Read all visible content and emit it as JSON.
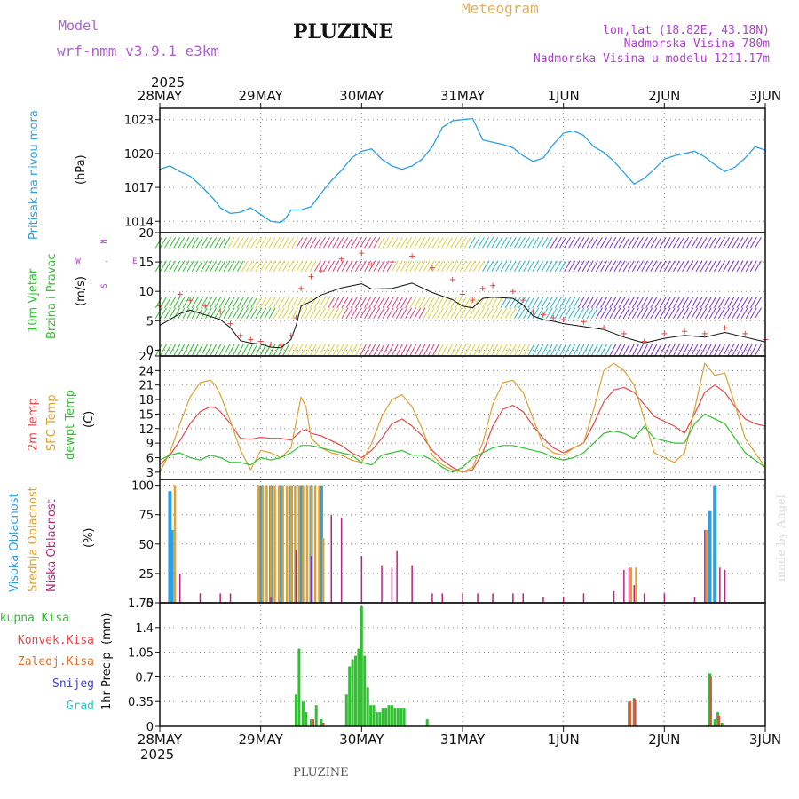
{
  "header": {
    "model_label": "Model",
    "model_name": "wrf-nmm_v3.9.1  e3km",
    "station": "PLUZINE",
    "chart_kind": "Meteogram",
    "lonlat": "lon,lat (18.82E, 43.18N)",
    "elevation": "Nadmorska Visina 780m",
    "model_elevation": "Nadmorska Visina u modelu 1211.17m",
    "year": "2025",
    "footer_station": "PLUZINE",
    "credit": "made by Angel"
  },
  "chart_data": [
    {
      "type": "line",
      "id": "pressure",
      "ylabel": "Pritisak na nivou mora",
      "unit": "(hPa)",
      "ylim": [
        1013,
        1024
      ],
      "yticks": [
        "1014",
        "1017",
        "1020",
        "1023"
      ],
      "x_days": [
        0,
        0.1,
        0.2,
        0.3,
        0.4,
        0.5,
        0.55,
        0.6,
        0.7,
        0.8,
        0.9,
        1.0,
        1.05,
        1.1,
        1.2,
        1.25,
        1.3,
        1.4,
        1.5,
        1.6,
        1.7,
        1.8,
        1.9,
        2.0,
        2.1,
        2.2,
        2.3,
        2.4,
        2.5,
        2.6,
        2.7,
        2.8,
        2.9,
        3.0,
        3.1,
        3.2,
        3.3,
        3.4,
        3.5,
        3.6,
        3.7,
        3.8,
        3.9,
        4.0,
        4.1,
        4.2,
        4.3,
        4.4,
        4.5,
        4.6,
        4.7,
        4.8,
        4.9,
        5.0,
        5.1,
        5.2,
        5.3,
        5.4,
        5.5,
        5.6,
        5.7,
        5.8,
        5.9,
        6.0
      ],
      "values": [
        1018.6,
        1018.9,
        1018.4,
        1018.0,
        1017.2,
        1016.3,
        1015.8,
        1015.2,
        1014.7,
        1014.8,
        1015.2,
        1014.6,
        1014.3,
        1014.0,
        1013.9,
        1014.3,
        1015.0,
        1015.0,
        1015.3,
        1016.5,
        1017.6,
        1018.5,
        1019.6,
        1020.2,
        1020.4,
        1019.5,
        1018.9,
        1018.6,
        1018.9,
        1019.5,
        1020.6,
        1022.3,
        1022.9,
        1023.0,
        1023.1,
        1021.2,
        1021.0,
        1020.8,
        1020.5,
        1019.8,
        1019.3,
        1019.6,
        1020.8,
        1021.8,
        1022.0,
        1021.6,
        1020.6,
        1020.1,
        1019.3,
        1018.3,
        1017.3,
        1017.8,
        1018.6,
        1019.5,
        1019.8,
        1020.0,
        1020.2,
        1019.7,
        1019.0,
        1018.4,
        1018.8,
        1019.6,
        1020.6,
        1020.3
      ]
    },
    {
      "type": "line",
      "id": "wind",
      "ylabel": "10m Vjetar",
      "ylabel2": "Brzina i Pravac",
      "unit": "(m/s)",
      "ylim": [
        -1,
        20
      ],
      "yticks": [
        "0",
        "5",
        "10",
        "15",
        "20"
      ],
      "compass": [
        "N",
        "W",
        "-",
        "E",
        "S"
      ],
      "x_days": [
        0,
        0.2,
        0.3,
        0.45,
        0.6,
        0.7,
        0.8,
        0.9,
        1.0,
        1.1,
        1.2,
        1.3,
        1.35,
        1.4,
        1.5,
        1.6,
        1.8,
        2.0,
        2.1,
        2.3,
        2.5,
        2.7,
        2.9,
        3.0,
        3.1,
        3.2,
        3.3,
        3.5,
        3.6,
        3.7,
        3.8,
        3.9,
        4.0,
        4.2,
        4.4,
        4.6,
        4.8,
        5.0,
        5.2,
        5.4,
        5.6,
        5.8,
        6.0
      ],
      "values": [
        4.2,
        6.2,
        6.8,
        6.0,
        5.2,
        3.8,
        1.6,
        1.2,
        1.0,
        0.5,
        0.4,
        1.8,
        4.2,
        7.5,
        8.3,
        9.4,
        10.6,
        11.3,
        10.4,
        10.5,
        11.4,
        9.8,
        8.6,
        7.5,
        7.2,
        8.8,
        9.0,
        8.8,
        7.7,
        5.8,
        5.2,
        4.9,
        4.5,
        4.0,
        3.5,
        2.2,
        1.2,
        2.0,
        2.5,
        2.2,
        3.0,
        2.2,
        1.4
      ],
      "gust_values": [
        7.5,
        9.5,
        8.5,
        7.5,
        6.5,
        4.5,
        2.5,
        1.8,
        1.5,
        1.0,
        0.8,
        2.5,
        5.5,
        10.5,
        12.5,
        13.5,
        15.5,
        16.5,
        14.5,
        15.0,
        16.0,
        14.0,
        12.0,
        9.5,
        8.5,
        10.5,
        11.0,
        10.0,
        8.5,
        6.5,
        6.0,
        5.5,
        5.2,
        4.8,
        3.8,
        2.8,
        1.5,
        2.8,
        3.2,
        2.8,
        3.8,
        2.8,
        1.8
      ]
    },
    {
      "type": "line",
      "id": "temperature",
      "ylabel": "2m Temp",
      "ylabel2": "SFC Temp",
      "ylabel3": "dewpt Temp",
      "unit": "(C)",
      "ylim": [
        1.5,
        27
      ],
      "yticks": [
        "3",
        "6",
        "9",
        "12",
        "15",
        "18",
        "21",
        "24",
        "27"
      ],
      "series": [
        {
          "name": "2m Temp",
          "color": "#e84848",
          "x_days": [
            0,
            0.1,
            0.2,
            0.3,
            0.4,
            0.5,
            0.55,
            0.6,
            0.7,
            0.8,
            0.9,
            1.0,
            1.1,
            1.2,
            1.3,
            1.4,
            1.45,
            1.5,
            1.6,
            1.7,
            1.8,
            1.9,
            2.0,
            2.1,
            2.2,
            2.3,
            2.4,
            2.5,
            2.6,
            2.7,
            2.8,
            2.9,
            3.0,
            3.1,
            3.2,
            3.3,
            3.4,
            3.5,
            3.6,
            3.7,
            3.8,
            3.9,
            4.0,
            4.1,
            4.2,
            4.3,
            4.4,
            4.5,
            4.6,
            4.7,
            4.8,
            4.9,
            5.0,
            5.1,
            5.2,
            5.3,
            5.4,
            5.5,
            5.6,
            5.7,
            5.8,
            5.9,
            6.0
          ],
          "values": [
            4.5,
            6.5,
            9.5,
            13.0,
            15.5,
            16.5,
            16.3,
            15.5,
            13.0,
            10.0,
            9.8,
            10.2,
            10.0,
            10.0,
            9.6,
            11.5,
            11.8,
            11.0,
            10.5,
            9.5,
            8.5,
            7.0,
            6.0,
            7.5,
            10.0,
            13.0,
            14.0,
            12.5,
            10.5,
            7.5,
            5.5,
            4.0,
            3.0,
            3.5,
            7.0,
            12.5,
            16.0,
            16.8,
            15.5,
            12.5,
            10.0,
            8.0,
            7.0,
            8.0,
            9.0,
            13.0,
            17.5,
            20.0,
            20.5,
            19.5,
            17.0,
            14.5,
            13.5,
            12.5,
            11.0,
            15.0,
            19.5,
            21.0,
            19.5,
            16.5,
            14.0,
            13.0,
            12.5
          ]
        },
        {
          "name": "SFC Temp",
          "color": "#e0a030",
          "x_days": [
            0,
            0.1,
            0.2,
            0.3,
            0.4,
            0.5,
            0.55,
            0.6,
            0.7,
            0.8,
            0.9,
            1.0,
            1.1,
            1.2,
            1.3,
            1.4,
            1.45,
            1.5,
            1.6,
            1.7,
            1.8,
            1.9,
            2.0,
            2.1,
            2.2,
            2.3,
            2.4,
            2.5,
            2.6,
            2.7,
            2.8,
            2.9,
            3.0,
            3.1,
            3.2,
            3.3,
            3.4,
            3.5,
            3.6,
            3.7,
            3.8,
            3.9,
            4.0,
            4.1,
            4.2,
            4.3,
            4.4,
            4.5,
            4.6,
            4.7,
            4.8,
            4.9,
            5.0,
            5.1,
            5.2,
            5.3,
            5.4,
            5.5,
            5.6,
            5.7,
            5.8,
            5.9,
            6.0
          ],
          "values": [
            3.0,
            7.0,
            13.0,
            18.5,
            21.5,
            22.0,
            21.0,
            19.0,
            13.5,
            7.5,
            3.5,
            7.5,
            7.0,
            6.0,
            8.0,
            18.5,
            16.5,
            10.0,
            8.0,
            7.0,
            6.5,
            5.5,
            5.0,
            9.0,
            14.5,
            18.0,
            19.0,
            16.5,
            12.0,
            6.5,
            4.5,
            3.5,
            3.0,
            4.0,
            9.0,
            17.0,
            21.5,
            22.0,
            19.5,
            14.0,
            8.5,
            7.0,
            6.5,
            8.0,
            9.0,
            16.0,
            24.0,
            25.5,
            24.0,
            21.0,
            14.0,
            7.0,
            6.0,
            5.0,
            7.0,
            16.0,
            25.5,
            23.0,
            23.5,
            17.0,
            10.0,
            7.0,
            4.0
          ]
        },
        {
          "name": "dewpt Temp",
          "color": "#30c030",
          "x_days": [
            0,
            0.1,
            0.2,
            0.3,
            0.4,
            0.5,
            0.6,
            0.7,
            0.8,
            0.9,
            1.0,
            1.1,
            1.2,
            1.3,
            1.4,
            1.5,
            1.6,
            1.7,
            1.8,
            1.9,
            2.0,
            2.1,
            2.2,
            2.3,
            2.4,
            2.5,
            2.6,
            2.7,
            2.8,
            2.9,
            3.0,
            3.1,
            3.2,
            3.3,
            3.4,
            3.5,
            3.6,
            3.7,
            3.8,
            3.9,
            4.0,
            4.1,
            4.2,
            4.3,
            4.4,
            4.5,
            4.6,
            4.7,
            4.8,
            4.9,
            5.0,
            5.1,
            5.2,
            5.3,
            5.4,
            5.5,
            5.6,
            5.7,
            5.8,
            5.9,
            6.0
          ],
          "values": [
            5.5,
            6.5,
            7.0,
            6.0,
            5.5,
            6.5,
            6.0,
            5.0,
            5.0,
            4.5,
            6.0,
            5.5,
            6.0,
            7.0,
            8.5,
            8.5,
            8.0,
            7.5,
            7.0,
            6.5,
            5.0,
            4.5,
            6.5,
            7.0,
            7.5,
            6.5,
            6.5,
            5.5,
            4.0,
            3.0,
            4.0,
            6.0,
            7.0,
            8.0,
            8.5,
            8.5,
            8.0,
            7.5,
            7.0,
            6.0,
            5.5,
            6.0,
            7.0,
            9.0,
            11.0,
            11.5,
            11.0,
            10.0,
            12.5,
            10.0,
            9.5,
            9.0,
            9.0,
            13.0,
            15.0,
            14.0,
            13.0,
            10.0,
            7.0,
            5.5,
            4.0
          ]
        }
      ]
    },
    {
      "type": "bar",
      "id": "cloud",
      "ylabel": "Visoka Oblacnost",
      "ylabel2": "Srednja Oblacnost",
      "ylabel3": "Niska Oblacnost",
      "unit": "(%)",
      "ylim": [
        0,
        105
      ],
      "yticks": [
        "0",
        "25",
        "50",
        "75",
        "100"
      ],
      "series": [
        {
          "name": "Visoka Oblacnost",
          "color": "#2aa0e8",
          "x_days": [
            0.1,
            0.12,
            1.0,
            1.1,
            1.2,
            1.3,
            1.4,
            1.5,
            1.6,
            5.45,
            5.5
          ],
          "values": [
            95,
            62,
            100,
            100,
            100,
            100,
            100,
            100,
            100,
            78,
            100
          ]
        },
        {
          "name": "Srednja Oblacnost",
          "color": "#e0a030",
          "x_days": [
            0.15,
            0.98,
            1.02,
            1.06,
            1.1,
            1.14,
            1.18,
            1.22,
            1.26,
            1.3,
            1.34,
            1.38,
            1.42,
            1.46,
            1.5,
            1.54,
            1.58,
            1.62,
            4.67,
            4.72,
            5.42
          ],
          "values": [
            100,
            100,
            100,
            100,
            100,
            100,
            100,
            100,
            100,
            100,
            100,
            100,
            100,
            100,
            100,
            100,
            100,
            55,
            30,
            30,
            62
          ]
        },
        {
          "name": "Niska Oblacnost",
          "color": "#c02080",
          "x_days": [
            0.2,
            0.4,
            0.6,
            0.7,
            1.1,
            1.35,
            1.5,
            1.7,
            1.8,
            2.0,
            2.2,
            2.3,
            2.35,
            2.5,
            2.7,
            2.8,
            3.0,
            3.15,
            3.3,
            3.5,
            3.6,
            3.8,
            4.0,
            4.2,
            4.5,
            4.6,
            4.65,
            4.7,
            4.8,
            5.0,
            5.3,
            5.4,
            5.55,
            5.6
          ],
          "values": [
            25,
            8,
            8,
            8,
            5,
            45,
            40,
            75,
            72,
            40,
            32,
            30,
            44,
            32,
            8,
            8,
            8,
            8,
            8,
            8,
            8,
            5,
            5,
            8,
            10,
            28,
            30,
            15,
            8,
            8,
            5,
            62,
            30,
            28
          ]
        }
      ]
    },
    {
      "type": "bar",
      "id": "precip",
      "ylabel": "1hr Precip",
      "unit": "(mm)",
      "ylim": [
        0,
        1.75
      ],
      "yticks": [
        "0",
        "0.35",
        "0.7",
        "1.05",
        "1.4",
        "1.75"
      ],
      "legend": [
        "Ukupna Kisa",
        "Konvek.Kisa",
        "Zaledj.Kisa",
        "Snijeg",
        "Grad"
      ],
      "legend_colors": [
        "#30c030",
        "#e84848",
        "#e07030",
        "#4040d0",
        "#30c0c0"
      ],
      "series": [
        {
          "name": "Ukupna Kisa",
          "color": "#30c030",
          "x_days": [
            1.35,
            1.38,
            1.42,
            1.45,
            1.5,
            1.55,
            1.6,
            1.85,
            1.88,
            1.91,
            1.94,
            1.97,
            2.0,
            2.03,
            2.06,
            2.09,
            2.12,
            2.15,
            2.18,
            2.21,
            2.24,
            2.27,
            2.3,
            2.33,
            2.36,
            2.39,
            2.42,
            2.65,
            4.65,
            4.7,
            5.45,
            5.5,
            5.53,
            5.57
          ],
          "values": [
            0.45,
            1.1,
            0.35,
            0.2,
            0.1,
            0.3,
            0.1,
            0.45,
            0.85,
            0.95,
            1.0,
            1.1,
            1.7,
            1.0,
            0.55,
            0.3,
            0.3,
            0.2,
            0.2,
            0.25,
            0.25,
            0.3,
            0.3,
            0.25,
            0.25,
            0.25,
            0.25,
            0.1,
            0.35,
            0.4,
            0.75,
            0.1,
            0.2,
            0.05
          ]
        },
        {
          "name": "Konvek.Kisa",
          "color": "#e84848",
          "x_days": [
            1.52,
            1.62,
            4.66,
            4.71,
            5.46,
            5.54
          ],
          "values": [
            0.1,
            0.05,
            0.35,
            0.38,
            0.7,
            0.15
          ]
        }
      ]
    }
  ],
  "x_axis": {
    "day_labels": [
      "28MAY",
      "29MAY",
      "30MAY",
      "31MAY",
      "1JUN",
      "2JUN",
      "3JUN"
    ]
  }
}
